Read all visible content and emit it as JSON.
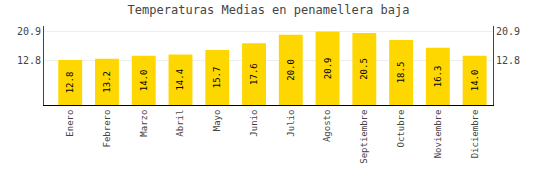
{
  "chart_data": {
    "type": "bar",
    "title": "Temperaturas Medias en penamellera baja",
    "categories": [
      "Enero",
      "Febrero",
      "Marzo",
      "Abril",
      "Mayo",
      "Junio",
      "Julio",
      "Agosto",
      "Septiembre",
      "Octubre",
      "Noviembre",
      "Diciembre"
    ],
    "values": [
      12.8,
      13.2,
      14.0,
      14.4,
      15.7,
      17.6,
      20.0,
      20.9,
      20.5,
      18.5,
      16.3,
      14.0
    ],
    "value_labels": [
      "12.8",
      "13.2",
      "14.0",
      "14.4",
      "15.7",
      "17.6",
      "20.0",
      "20.9",
      "20.5",
      "18.5",
      "16.3",
      "14.0"
    ],
    "color": "#FFD700",
    "data_labels": true,
    "ylim": [
      0,
      22.5
    ],
    "yticks": [
      12.8,
      20.9
    ],
    "y2lim": [
      0,
      22.5
    ],
    "y2ticks": [
      12.8,
      20.9
    ],
    "grid": true
  }
}
